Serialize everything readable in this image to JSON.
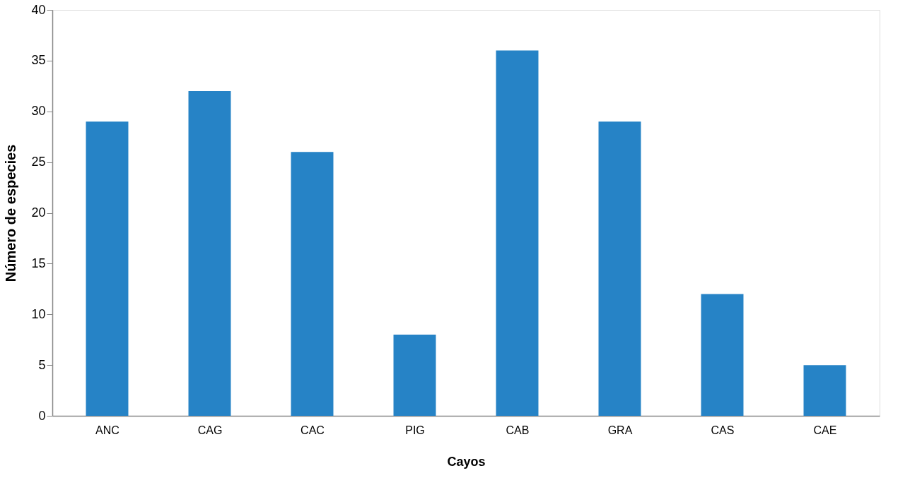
{
  "chart_data": {
    "type": "bar",
    "xlabel": "Cayos",
    "ylabel": "Número de especies",
    "categories": [
      "ANC",
      "CAG",
      "CAC",
      "PIG",
      "CAB",
      "GRA",
      "CAS",
      "CAE"
    ],
    "values": [
      29,
      32,
      26,
      8,
      36,
      29,
      12,
      5
    ],
    "color": "#2683c6",
    "ylim": [
      0,
      40
    ],
    "yticks": [
      0,
      5,
      10,
      15,
      20,
      25,
      30,
      35,
      40
    ],
    "grid": false
  }
}
